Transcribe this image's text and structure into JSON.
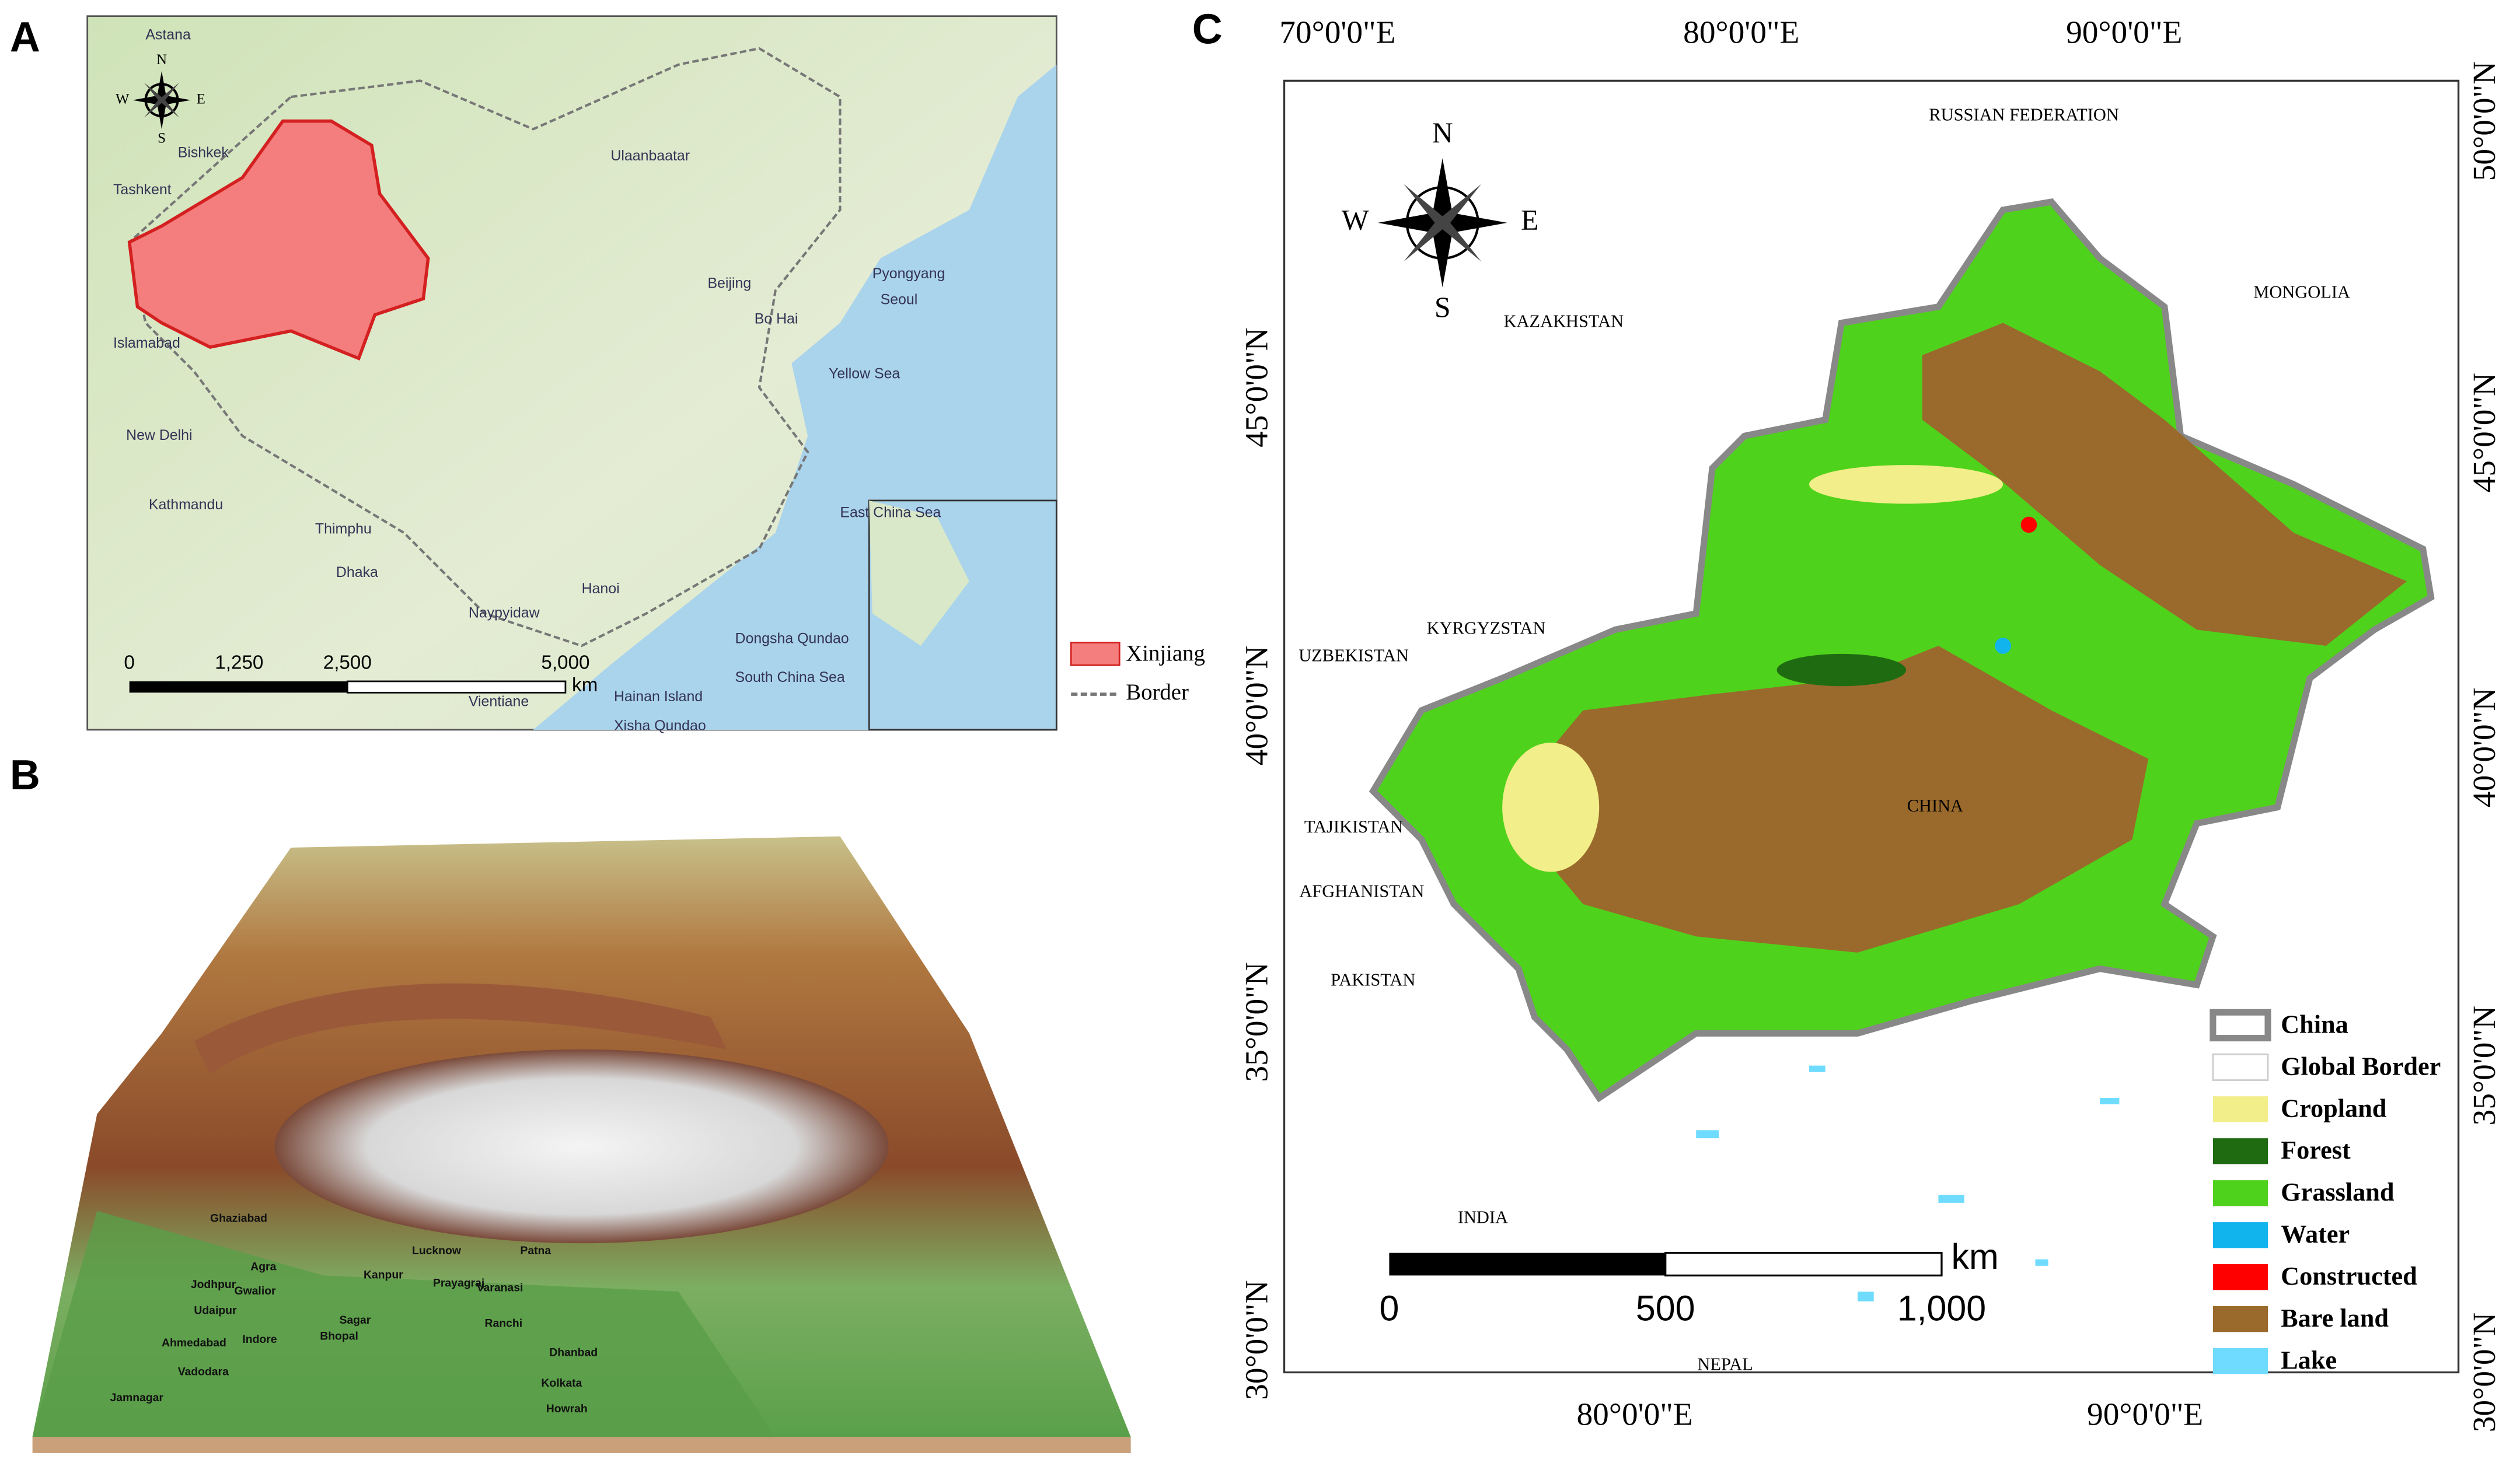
{
  "panel_a": {
    "label": "A",
    "places": [
      "Astana",
      "Bishkek",
      "Tashkent",
      "Islamabad",
      "New Delhi",
      "Kathmandu",
      "Thimphu",
      "Dhaka",
      "Ulaanbaatar",
      "Beijing",
      "Bo Hai",
      "Pyongyang",
      "Seoul",
      "Yellow Sea",
      "East China Sea",
      "Hanoi",
      "Naypyidaw",
      "Vientiane",
      "Dongsha Qundao",
      "South China Sea",
      "Hainan Island",
      "Xisha Qundao"
    ],
    "compass": [
      "N",
      "S",
      "E",
      "W"
    ],
    "scale_labels": [
      "0",
      "1,250",
      "2,500",
      "5,000"
    ],
    "scale_unit": "km",
    "legend": [
      "Xinjiang",
      "Border"
    ]
  },
  "panel_b": {
    "label": "B",
    "places": [
      "Lucknow",
      "Kanpur",
      "Prayagraj",
      "Patna",
      "Jodhpur",
      "Ghaziabad",
      "Agra",
      "Gwalior",
      "Udaipur",
      "Ahmedabad",
      "Indore",
      "Bhopal",
      "Sagar",
      "Jamnagar",
      "Vadodara",
      "Dhanbad",
      "Kolkata",
      "Howrah",
      "Varanasi",
      "Ranchi"
    ]
  },
  "panel_c": {
    "label": "C",
    "top_ticks": [
      "70°0'0\"E",
      "80°0'0\"E",
      "90°0'0\"E"
    ],
    "bottom_ticks": [
      "80°0'0\"E",
      "90°0'0\"E"
    ],
    "left_ticks": [
      "45°0'0\"N",
      "40°0'0\"N",
      "35°0'0\"N",
      "30°0'0\"N"
    ],
    "right_ticks": [
      "50°0'0\"N",
      "45°0'0\"N",
      "40°0'0\"N",
      "35°0'0\"N",
      "30°0'0\"N"
    ],
    "countries": [
      "RUSSIAN FEDERATION",
      "MONGOLIA",
      "KAZAKHSTAN",
      "KYRGYZSTAN",
      "UZBEKISTAN",
      "CHINA",
      "TAJIKISTAN",
      "AFGHANISTAN",
      "PAKISTAN",
      "INDIA",
      "NEPAL"
    ],
    "compass": [
      "N",
      "S",
      "E",
      "W"
    ],
    "scale_labels": [
      "0",
      "500",
      "1,000"
    ],
    "scale_unit": "km",
    "legend": [
      {
        "label": "China",
        "color": "#ffffff"
      },
      {
        "label": "Global Border",
        "color": "#ffffff"
      },
      {
        "label": "Cropland",
        "color": "#f2ee8a"
      },
      {
        "label": "Forest",
        "color": "#1f6b12"
      },
      {
        "label": "Grassland",
        "color": "#4fd21b"
      },
      {
        "label": "Water",
        "color": "#12b4ee"
      },
      {
        "label": "Constructed",
        "color": "#ff0000"
      },
      {
        "label": "Bare land",
        "color": "#9a6a2c"
      },
      {
        "label": "Lake",
        "color": "#6fdcff"
      }
    ]
  }
}
